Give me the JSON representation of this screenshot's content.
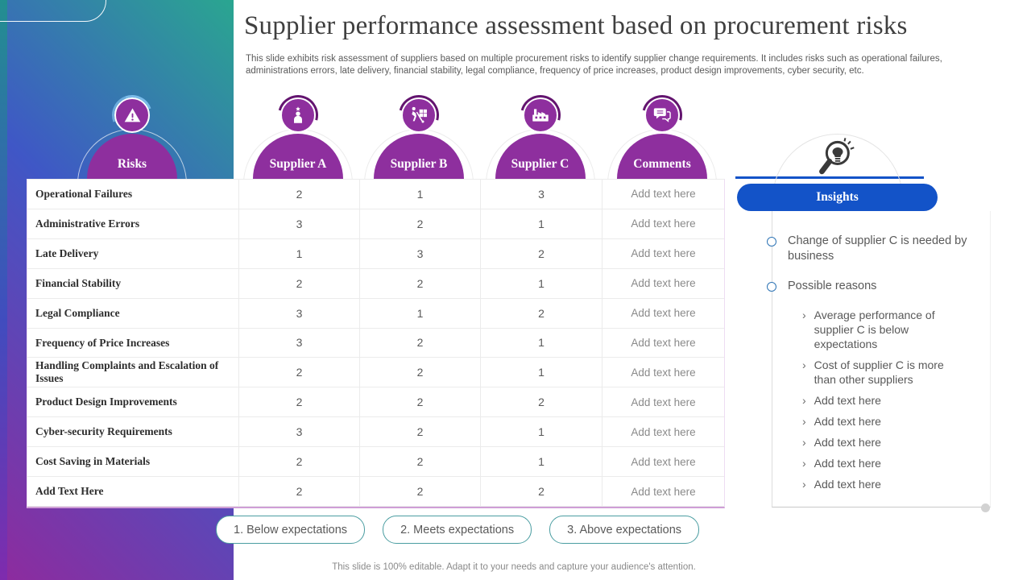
{
  "title": "Supplier performance assessment based on procurement risks",
  "subtitle": "This slide exhibits risk assessment of suppliers based on multiple procurement risks to identify supplier change requirements. It includes risks such as operational failures, administrations errors, late delivery,  financial stability, legal compliance, frequency of price increases, product design improvements, cyber security, etc.",
  "footer": "This slide is 100% editable. Adapt it to your needs and capture your audience's attention.",
  "colors": {
    "purple": "#8e2f9e",
    "purple_dark": "#63146f",
    "insights_blue": "#1353c8",
    "legend_teal": "#4a9da1",
    "gradient_teal": "#2aa690",
    "gradient_blue": "#3f57c6",
    "gradient_purple": "#8e2b9e"
  },
  "table": {
    "columns": [
      {
        "label": "Risks",
        "icon": "warning-icon"
      },
      {
        "label": "Supplier A",
        "icon": "person-star-icon"
      },
      {
        "label": "Supplier B",
        "icon": "hand-truck-icon"
      },
      {
        "label": "Supplier C",
        "icon": "factory-icon"
      },
      {
        "label": "Comments",
        "icon": "chat-bubbles-icon"
      }
    ],
    "rows": [
      {
        "risk": "Operational Failures",
        "ratings": [
          2,
          1,
          3
        ],
        "comment": "Add text here"
      },
      {
        "risk": "Administrative Errors",
        "ratings": [
          3,
          2,
          1
        ],
        "comment": "Add text here"
      },
      {
        "risk": "Late Delivery",
        "ratings": [
          1,
          3,
          2
        ],
        "comment": "Add text here"
      },
      {
        "risk": "Financial Stability",
        "ratings": [
          2,
          2,
          1
        ],
        "comment": "Add text here"
      },
      {
        "risk": "Legal Compliance",
        "ratings": [
          3,
          1,
          2
        ],
        "comment": "Add text here"
      },
      {
        "risk": "Frequency of Price Increases",
        "ratings": [
          3,
          2,
          1
        ],
        "comment": "Add text here"
      },
      {
        "risk": "Handling Complaints and Escalation of Issues",
        "ratings": [
          2,
          2,
          1
        ],
        "comment": "Add text here"
      },
      {
        "risk": "Product Design Improvements",
        "ratings": [
          2,
          2,
          2
        ],
        "comment": "Add text here"
      },
      {
        "risk": "Cyber-security Requirements",
        "ratings": [
          3,
          2,
          1
        ],
        "comment": "Add text here"
      },
      {
        "risk": "Cost Saving in Materials",
        "ratings": [
          2,
          2,
          1
        ],
        "comment": "Add text here"
      },
      {
        "risk": "Add Text Here",
        "ratings": [
          2,
          2,
          2
        ],
        "comment": "Add text here"
      }
    ]
  },
  "insights": {
    "label": "Insights",
    "icon": "magnifier-bulb-icon",
    "sub_marker": "›",
    "bullets": [
      {
        "text": "Change of supplier C is needed by business",
        "sub": []
      },
      {
        "text": "Possible reasons",
        "sub": [
          "Average performance of supplier C is below expectations",
          "Cost of supplier C is more than other suppliers",
          "Add text here",
          "Add text here",
          "Add text here",
          "Add text here",
          "Add text here"
        ]
      }
    ]
  },
  "legend": [
    "1. Below expectations",
    "2. Meets expectations",
    "3. Above expectations"
  ]
}
